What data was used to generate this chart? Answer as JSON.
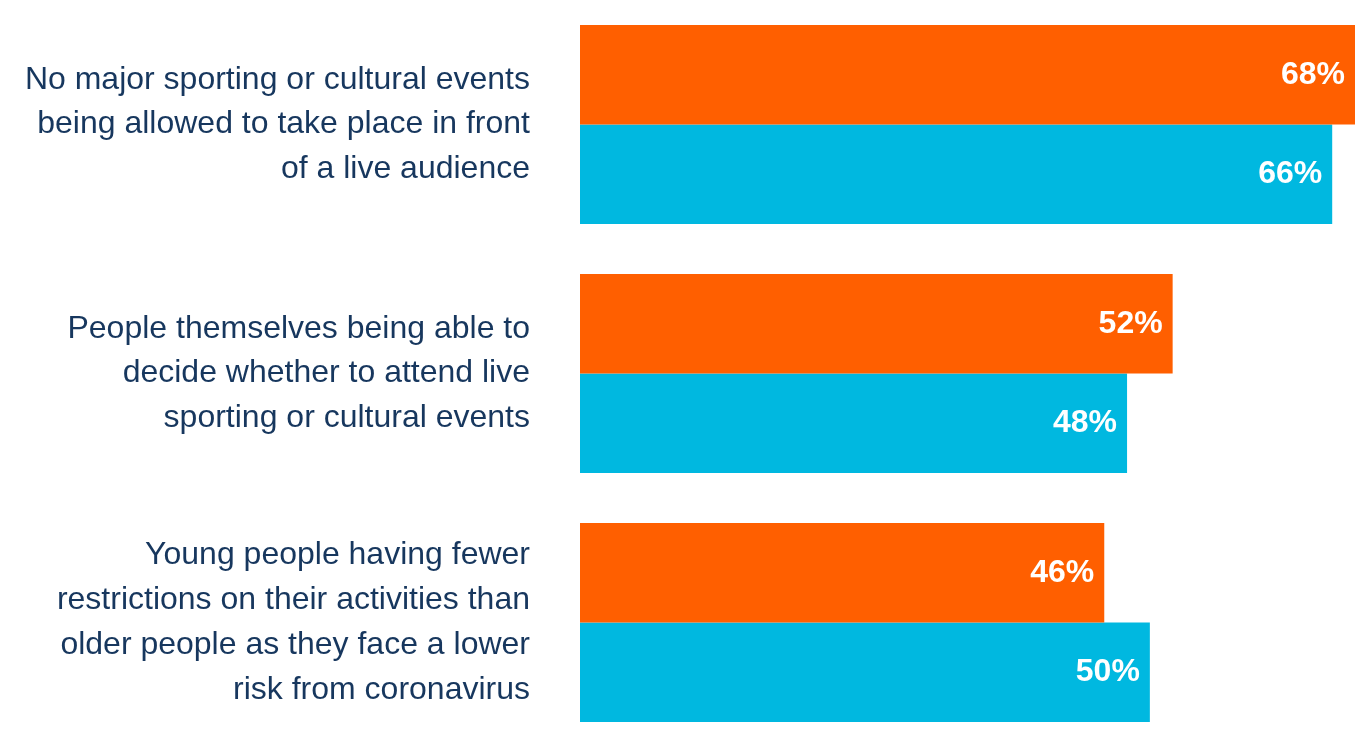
{
  "chart_data": {
    "type": "bar",
    "orientation": "horizontal",
    "categories": [
      "No major sporting or cultural events being allowed to take place in front of a live audience",
      "People themselves being able to decide whether to attend live sporting or cultural events",
      "Young people having fewer restrictions on their activities than older people as they face a lower risk from coronavirus"
    ],
    "series": [
      {
        "color": "#ff5f00",
        "values": [
          68,
          52,
          46
        ],
        "value_labels": [
          "68%",
          "52%",
          "46%"
        ]
      },
      {
        "color": "#00b8e0",
        "values": [
          66,
          48,
          50
        ],
        "value_labels": [
          "66%",
          "48%",
          "50%"
        ]
      }
    ],
    "tick_labels": "y",
    "grid": false,
    "legend": false
  }
}
